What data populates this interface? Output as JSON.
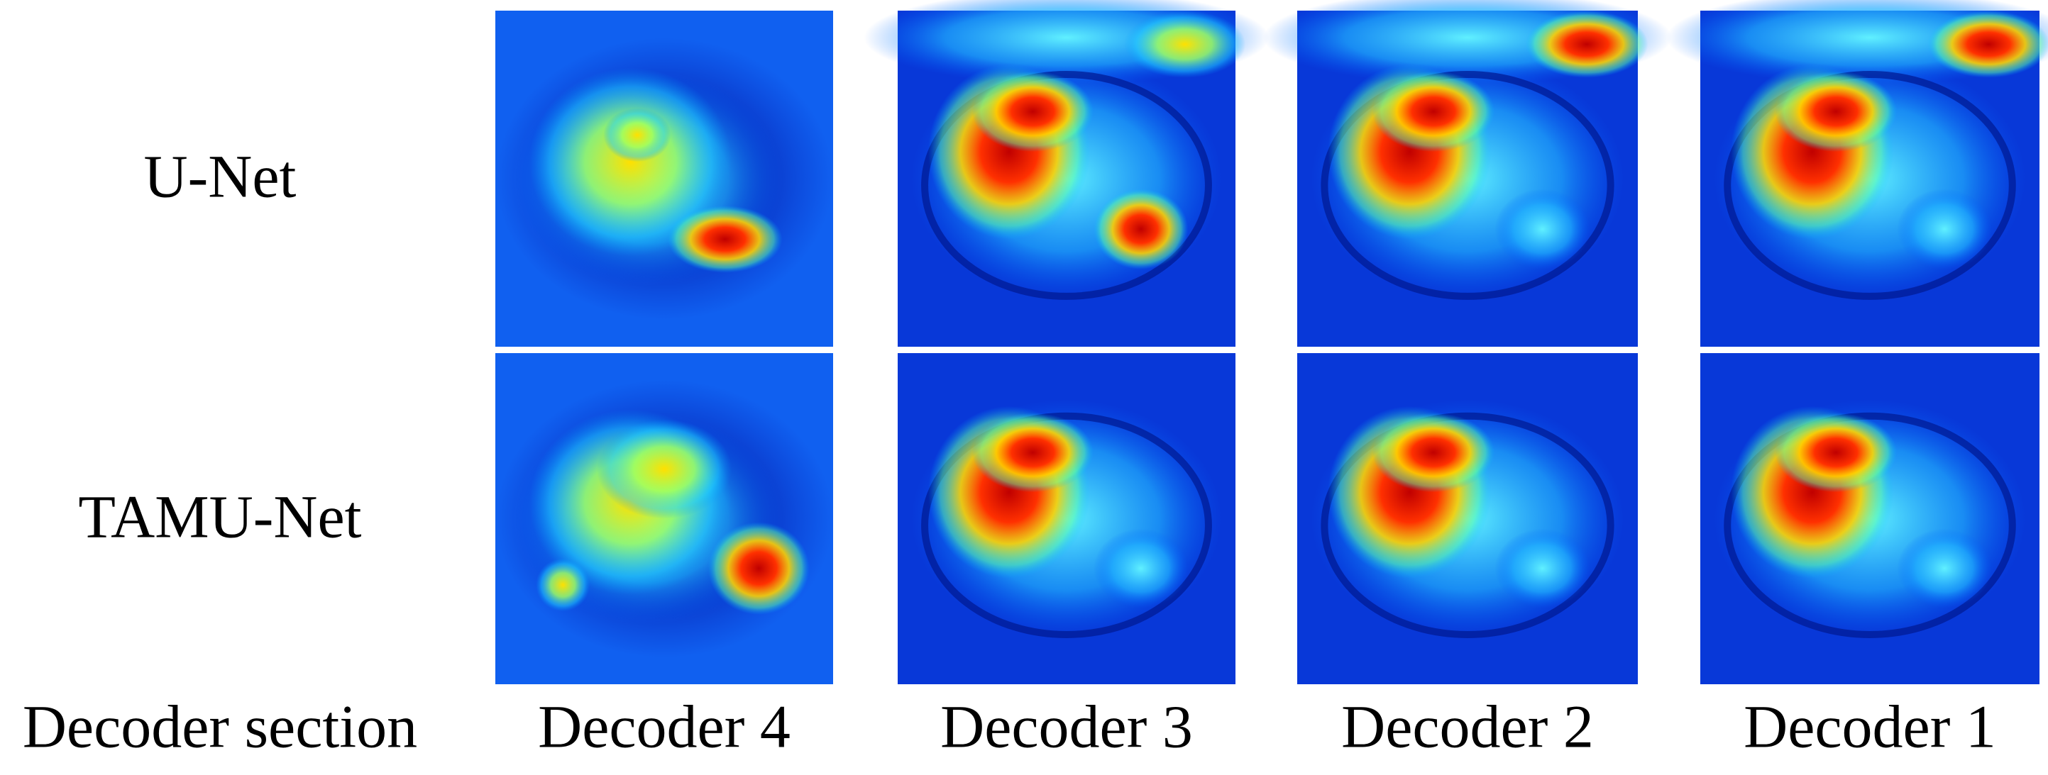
{
  "row_labels": [
    "U-Net",
    "TAMU-Net"
  ],
  "column_header": "Decoder section",
  "column_labels": [
    "Decoder 4",
    "Decoder 3",
    "Decoder 2",
    "Decoder 1"
  ]
}
